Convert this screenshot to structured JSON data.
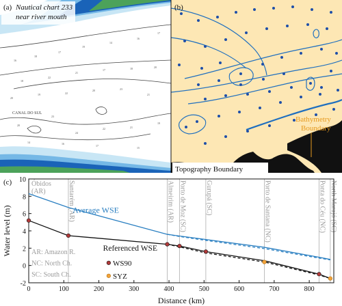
{
  "panel_a": {
    "label": "(a)",
    "title_line1": "Nautical chart 233",
    "title_line2": "near river mouth",
    "canal_label": "CANAL DO SUL",
    "boundary_label": "Topography Boundary"
  },
  "panel_b": {
    "label": "(b)",
    "bathymetry_label_line1": "Bathymetry",
    "bathymetry_label_line2": "Boundary"
  },
  "panel_c": {
    "label": "(c)"
  },
  "colors": {
    "land": "#fde7b4",
    "deep_blue": "#1a63b8",
    "mid_blue": "#75b8e6",
    "light_blue": "#c8e6f5",
    "green": "#4ca25a",
    "dot_blue": "#1f4fa8",
    "line_blue": "#2a7fc1",
    "line_black": "#111111",
    "ws90_fill": "#b13a3a",
    "syz_fill": "#f2a23a",
    "station_gray": "#bdbdbd"
  },
  "chart_data": {
    "type": "line",
    "xlabel": "Distance (km)",
    "ylabel": "Water level (m)",
    "xlim": [
      0,
      870
    ],
    "ylim": [
      -2,
      10
    ],
    "xticks": [
      0,
      100,
      200,
      300,
      400,
      500,
      600,
      700,
      800
    ],
    "yticks": [
      -2,
      0,
      2,
      4,
      6,
      8,
      10
    ],
    "stations": [
      {
        "name": "Óbidos",
        "tag": "(AR)",
        "x": 0
      },
      {
        "name": "Santarém",
        "tag": "(AR)",
        "x": 113
      },
      {
        "name": "Almeirim",
        "tag": "(AR)",
        "x": 395
      },
      {
        "name": "Porto de Moz",
        "tag": "(SC)",
        "x": 430
      },
      {
        "name": "Gurupá",
        "tag": "(SC)",
        "x": 505
      },
      {
        "name": "Porto de Santana",
        "tag": "(NC)",
        "x": 672
      },
      {
        "name": "Ponta do Céu",
        "tag": "(NC)",
        "x": 828
      },
      {
        "name": "North Marajó",
        "tag": "(SC)",
        "x": 860
      }
    ],
    "series": [
      {
        "name": "Average WSE",
        "style": "solid",
        "color": "#2a7fc1",
        "x": [
          0,
          113,
          395,
          505,
          672,
          828,
          860
        ],
        "y": [
          8.3,
          6.7,
          3.6,
          3.0,
          2.1,
          0.95,
          0.7
        ]
      },
      {
        "name": "",
        "style": "dashed",
        "color": "#2a7fc1",
        "x": [
          395,
          430,
          505,
          672,
          828,
          860
        ],
        "y": [
          3.6,
          3.35,
          2.9,
          1.95,
          0.85,
          0.65
        ]
      },
      {
        "name": "",
        "style": "solid",
        "color": "#111111",
        "x": [
          0,
          113,
          395,
          430,
          505,
          672,
          828,
          860
        ],
        "y": [
          5.2,
          3.45,
          2.45,
          2.25,
          1.6,
          0.55,
          -1.0,
          -1.5
        ]
      },
      {
        "name": "",
        "style": "dashed",
        "color": "#111111",
        "x": [
          395,
          430,
          505,
          672,
          828,
          860
        ],
        "y": [
          2.45,
          2.15,
          1.45,
          0.4,
          -1.1,
          -1.5
        ]
      }
    ],
    "markers": {
      "WS90": {
        "x": [
          0,
          113,
          395,
          430,
          505,
          828
        ],
        "y": [
          5.2,
          3.45,
          2.45,
          2.25,
          1.6,
          -1.0
        ]
      },
      "SYZ": {
        "x": [
          672,
          860
        ],
        "y": [
          0.4,
          -1.5
        ]
      }
    },
    "labels": {
      "avg_wse": "Average WSE",
      "legend_title": "Referenced WSE",
      "ws90": "WS90",
      "syz": "SYZ",
      "abbr1": "AR: Amazon R.",
      "abbr2": "NC: North Ch.",
      "abbr3": "SC: South Ch."
    },
    "grid": false
  }
}
